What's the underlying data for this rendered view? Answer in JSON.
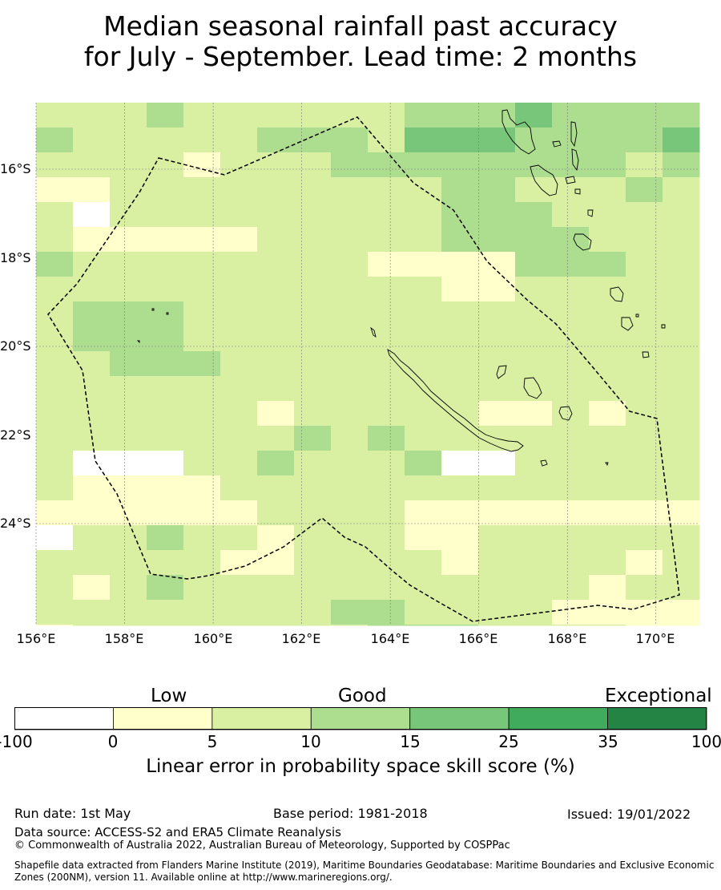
{
  "title_line1": "Median seasonal rainfall past accuracy",
  "title_line2": "for July - September. Lead time: 2 months",
  "map": {
    "lon_labels": [
      "156°E",
      "158°E",
      "160°E",
      "162°E",
      "164°E",
      "166°E",
      "168°E",
      "170°E"
    ],
    "lon_values": [
      156,
      158,
      160,
      162,
      164,
      166,
      168,
      170
    ],
    "lat_labels": [
      "16°S",
      "18°S",
      "20°S",
      "22°S",
      "24°S"
    ],
    "lat_values": [
      -16,
      -18,
      -20,
      -22,
      -24
    ],
    "lon_range": [
      156,
      171
    ],
    "lat_range": [
      -26.6,
      -14.8
    ],
    "grid_lines": true,
    "skill_grid_rows": [
      "111211111122232222233331",
      "211111222133322223333221",
      "111101112222222212222221",
      "001111111112211121111120",
      "1x11111111122211111111x1",
      "100000111112222111111120",
      "211111111000022211011111",
      "111111111110011111001111",
      "122211111111111111111111",
      "122211111111111111211111",
      "112221111111111111211111",
      "111111111111111111211111",
      "111111011111001011211110",
      "111111121211111111211111",
      "1xxx1121112xx11111111111",
      "100001111111111111110121",
      "0000001111000000000x1111",
      "x1121101110011111110x111",
      "111110011110111101111101",
      "101211111111111011101111",
      "11111111221111000001111x",
      "011111111222111100111101",
      "11211122112111111101110x",
      "111111111112111111110111",
      "100001101111111111111101",
      "100111111111111111111101"
    ]
  },
  "colorbar": {
    "categories": [
      "Low",
      "Good",
      "Exceptional"
    ],
    "boundaries": [
      "-100",
      "0",
      "5",
      "10",
      "15",
      "25",
      "35",
      "100"
    ],
    "colors": [
      "#ffffff",
      "#ffffcc",
      "#d9f0a3",
      "#addd8e",
      "#78c679",
      "#41ab5d",
      "#238443"
    ],
    "title": "Linear error in probability space skill score (%)"
  },
  "footer": {
    "run_date": "Run date: 1st May",
    "base_period": "Base period: 1981-2018",
    "issued": "Issued: 19/01/2022",
    "data_source": "Data source: ACCESS-S2 and ERA5 Climate Reanalysis",
    "copyright": "© Commonwealth of Australia 2022, Australian Bureau of Meteorology, Supported by COSPPac",
    "shapefile_note": "Shapefile data extracted from Flanders Marine Institute (2019), Maritime Boundaries Geodatabase: Maritime Boundaries and Exclusive Economic Zones (200NM), version 11. Available online at http://www.marineregions.org/."
  }
}
